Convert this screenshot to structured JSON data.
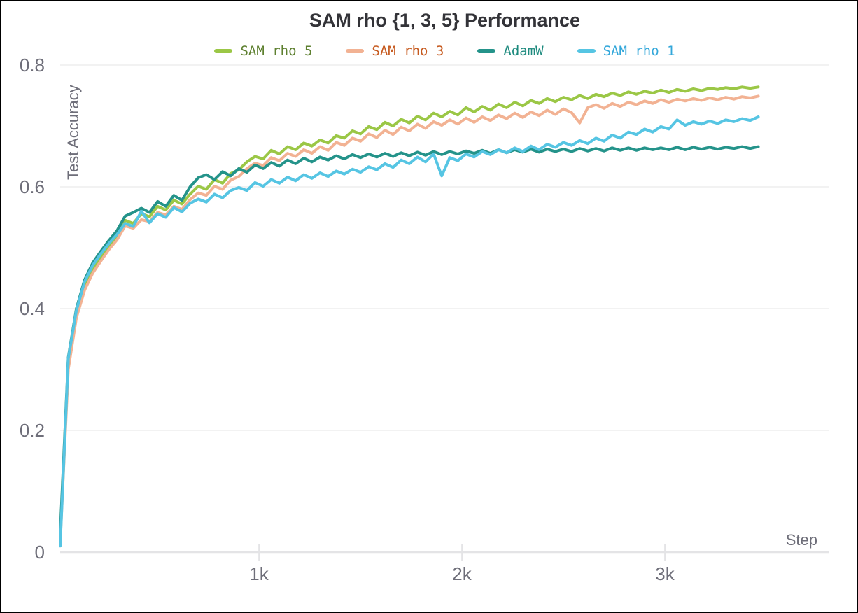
{
  "window": {
    "background": "#ffffff",
    "frame_border_color": "#000000"
  },
  "chart_data": {
    "type": "line",
    "title": "SAM rho {1, 3, 5} Performance",
    "xlabel": "Step",
    "ylabel": "Test Accuracy",
    "legend_position": "top",
    "grid": "horizontal",
    "xlim": [
      20,
      3810
    ],
    "ylim": [
      0,
      0.8
    ],
    "x_start": 20,
    "x_interval": 40,
    "x_ticks": [
      {
        "value": 1000,
        "label": "1k"
      },
      {
        "value": 2000,
        "label": "2k"
      },
      {
        "value": 3000,
        "label": "3k"
      }
    ],
    "y_ticks": [
      {
        "value": 0,
        "label": "0"
      },
      {
        "value": 0.2,
        "label": "0.2"
      },
      {
        "value": 0.4,
        "label": "0.4"
      },
      {
        "value": 0.6,
        "label": "0.6"
      },
      {
        "value": 0.8,
        "label": "0.8"
      }
    ],
    "colors": {
      "gridline": "#eeeeee",
      "axis_line": "#e4e4e6",
      "tick_text": "#6e6e79",
      "title_text": "#333338"
    },
    "series": [
      {
        "name": "SAM rho 5",
        "color": "#9bc746",
        "label_color": "#5e8030",
        "final_value": 0.764,
        "values": [
          0.02,
          0.31,
          0.392,
          0.438,
          0.465,
          0.484,
          0.502,
          0.518,
          0.545,
          0.54,
          0.556,
          0.551,
          0.568,
          0.562,
          0.578,
          0.572,
          0.588,
          0.601,
          0.596,
          0.612,
          0.606,
          0.622,
          0.628,
          0.641,
          0.65,
          0.646,
          0.66,
          0.654,
          0.666,
          0.661,
          0.672,
          0.667,
          0.677,
          0.672,
          0.684,
          0.68,
          0.692,
          0.687,
          0.699,
          0.694,
          0.706,
          0.7,
          0.711,
          0.705,
          0.716,
          0.71,
          0.721,
          0.715,
          0.724,
          0.718,
          0.73,
          0.723,
          0.732,
          0.726,
          0.736,
          0.73,
          0.739,
          0.733,
          0.742,
          0.737,
          0.745,
          0.74,
          0.747,
          0.743,
          0.75,
          0.745,
          0.752,
          0.748,
          0.754,
          0.75,
          0.756,
          0.752,
          0.757,
          0.754,
          0.759,
          0.755,
          0.76,
          0.757,
          0.761,
          0.758,
          0.762,
          0.76,
          0.763,
          0.761,
          0.764,
          0.762,
          0.764
        ]
      },
      {
        "name": "SAM rho 3",
        "color": "#f2b293",
        "label_color": "#c65a1f",
        "final_value": 0.749,
        "values": [
          0.015,
          0.3,
          0.385,
          0.43,
          0.458,
          0.478,
          0.497,
          0.513,
          0.536,
          0.532,
          0.546,
          0.543,
          0.558,
          0.554,
          0.568,
          0.563,
          0.579,
          0.59,
          0.586,
          0.601,
          0.596,
          0.611,
          0.617,
          0.63,
          0.639,
          0.635,
          0.648,
          0.643,
          0.655,
          0.65,
          0.661,
          0.655,
          0.666,
          0.66,
          0.673,
          0.668,
          0.68,
          0.675,
          0.687,
          0.681,
          0.693,
          0.686,
          0.698,
          0.692,
          0.703,
          0.696,
          0.707,
          0.701,
          0.71,
          0.703,
          0.713,
          0.706,
          0.715,
          0.709,
          0.718,
          0.712,
          0.721,
          0.714,
          0.723,
          0.717,
          0.726,
          0.719,
          0.728,
          0.722,
          0.705,
          0.73,
          0.735,
          0.729,
          0.737,
          0.732,
          0.739,
          0.735,
          0.741,
          0.737,
          0.743,
          0.739,
          0.744,
          0.741,
          0.745,
          0.742,
          0.746,
          0.743,
          0.747,
          0.744,
          0.748,
          0.746,
          0.749
        ]
      },
      {
        "name": "AdamW",
        "color": "#24938a",
        "label_color": "#1d8a7e",
        "final_value": 0.666,
        "values": [
          0.03,
          0.32,
          0.4,
          0.447,
          0.475,
          0.494,
          0.512,
          0.528,
          0.552,
          0.558,
          0.565,
          0.558,
          0.576,
          0.568,
          0.586,
          0.578,
          0.6,
          0.615,
          0.62,
          0.612,
          0.625,
          0.618,
          0.63,
          0.624,
          0.636,
          0.63,
          0.64,
          0.634,
          0.644,
          0.638,
          0.647,
          0.641,
          0.649,
          0.644,
          0.651,
          0.646,
          0.653,
          0.648,
          0.654,
          0.649,
          0.655,
          0.65,
          0.656,
          0.651,
          0.657,
          0.652,
          0.658,
          0.653,
          0.658,
          0.654,
          0.659,
          0.655,
          0.66,
          0.655,
          0.661,
          0.656,
          0.661,
          0.657,
          0.662,
          0.657,
          0.662,
          0.658,
          0.662,
          0.658,
          0.663,
          0.659,
          0.663,
          0.659,
          0.664,
          0.66,
          0.664,
          0.66,
          0.664,
          0.661,
          0.664,
          0.661,
          0.665,
          0.661,
          0.665,
          0.662,
          0.665,
          0.662,
          0.665,
          0.663,
          0.666,
          0.663,
          0.666
        ]
      },
      {
        "name": "SAM rho 1",
        "color": "#56c5e3",
        "label_color": "#33a7da",
        "final_value": 0.715,
        "values": [
          0.01,
          0.318,
          0.397,
          0.444,
          0.471,
          0.49,
          0.507,
          0.522,
          0.54,
          0.535,
          0.56,
          0.541,
          0.556,
          0.55,
          0.566,
          0.559,
          0.573,
          0.58,
          0.575,
          0.588,
          0.582,
          0.594,
          0.599,
          0.594,
          0.607,
          0.601,
          0.612,
          0.606,
          0.616,
          0.61,
          0.62,
          0.614,
          0.623,
          0.617,
          0.626,
          0.621,
          0.629,
          0.624,
          0.633,
          0.628,
          0.638,
          0.632,
          0.644,
          0.638,
          0.649,
          0.641,
          0.654,
          0.618,
          0.648,
          0.643,
          0.654,
          0.649,
          0.658,
          0.653,
          0.661,
          0.656,
          0.664,
          0.658,
          0.667,
          0.661,
          0.67,
          0.665,
          0.673,
          0.668,
          0.676,
          0.671,
          0.68,
          0.675,
          0.685,
          0.68,
          0.69,
          0.686,
          0.695,
          0.69,
          0.699,
          0.695,
          0.71,
          0.701,
          0.707,
          0.703,
          0.708,
          0.704,
          0.71,
          0.707,
          0.712,
          0.709,
          0.715
        ]
      }
    ]
  }
}
